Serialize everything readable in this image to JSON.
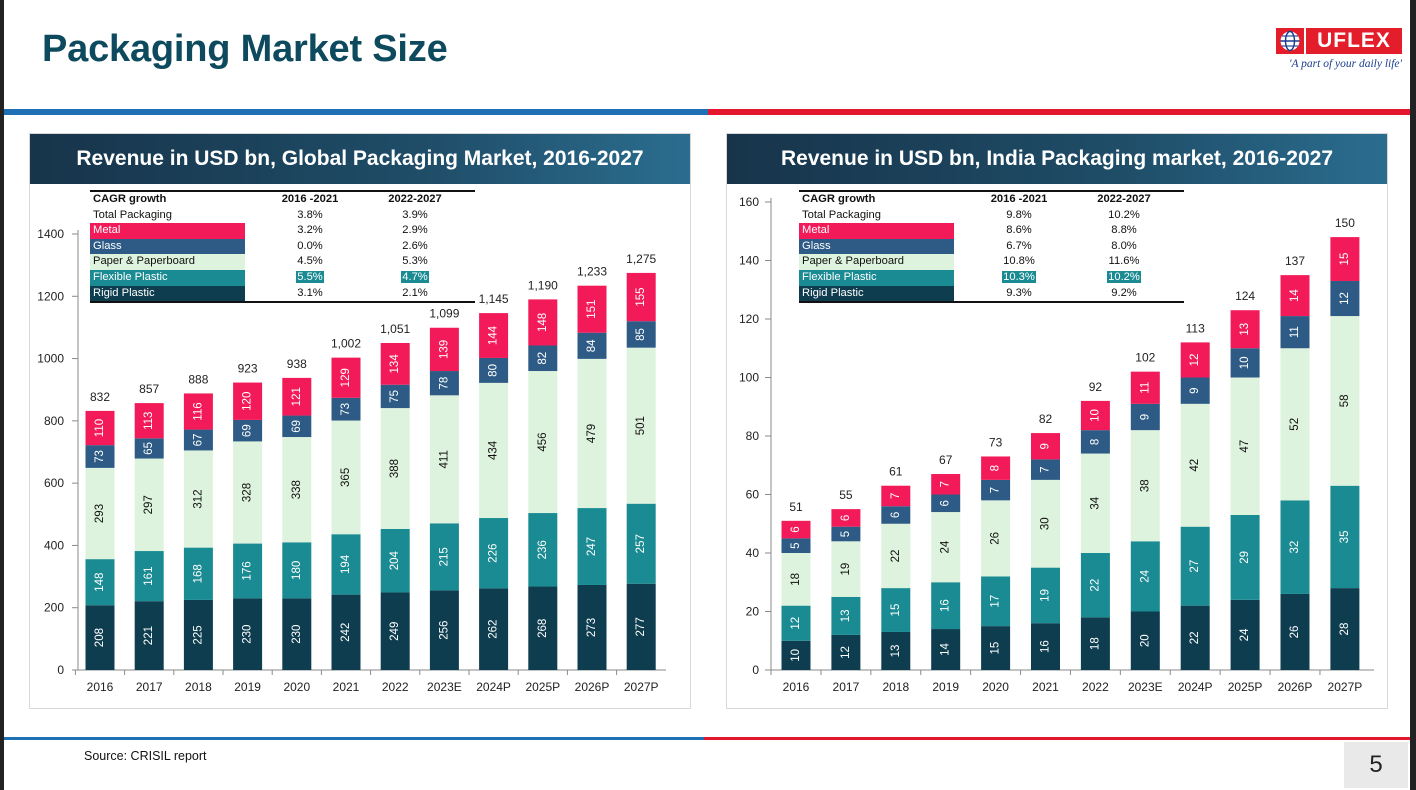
{
  "page": {
    "title": "Packaging Market Size",
    "source": "Source: CRISIL report",
    "page_number": "5"
  },
  "logo": {
    "name": "UFLEX",
    "tagline": "'A part of your daily life'"
  },
  "colors": {
    "title": "#0d4a5e",
    "metal": "#f21a58",
    "glass": "#2d5b86",
    "paper": "#ddf3dd",
    "flexible": "#1a8b93",
    "rigid": "#0e3d4f",
    "rule_blue": "#1f6fb5",
    "rule_red": "#e3162d"
  },
  "cagr_tables": [
    {
      "header": [
        "CAGR growth",
        "2016 -2021",
        "2022-2027"
      ],
      "rows": [
        {
          "label": "Total Packaging",
          "v1": "3.8%",
          "v2": "3.9%",
          "style": "plain"
        },
        {
          "label": "Metal",
          "v1": "3.2%",
          "v2": "2.9%",
          "style": "metal"
        },
        {
          "label": "Glass",
          "v1": "0.0%",
          "v2": "2.6%",
          "style": "glass"
        },
        {
          "label": "Paper & Paperboard",
          "v1": "4.5%",
          "v2": "5.3%",
          "style": "paper"
        },
        {
          "label": "Flexible Plastic",
          "v1": "5.5%",
          "v2": "4.7%",
          "style": "flexible"
        },
        {
          "label": "Rigid Plastic",
          "v1": "3.1%",
          "v2": "2.1%",
          "style": "rigid"
        }
      ]
    },
    {
      "header": [
        "CAGR growth",
        "2016 -2021",
        "2022-2027"
      ],
      "rows": [
        {
          "label": "Total Packaging",
          "v1": "9.8%",
          "v2": "10.2%",
          "style": "plain"
        },
        {
          "label": "Metal",
          "v1": "8.6%",
          "v2": "8.8%",
          "style": "metal"
        },
        {
          "label": "Glass",
          "v1": "6.7%",
          "v2": "8.0%",
          "style": "glass"
        },
        {
          "label": "Paper & Paperboard",
          "v1": "10.8%",
          "v2": "11.6%",
          "style": "paper"
        },
        {
          "label": "Flexible Plastic",
          "v1": "10.3%",
          "v2": "10.2%",
          "style": "flexible"
        },
        {
          "label": "Rigid Plastic",
          "v1": "9.3%",
          "v2": "9.2%",
          "style": "rigid"
        }
      ]
    }
  ],
  "chart_data": [
    {
      "type": "bar",
      "stacked": true,
      "title": "Revenue in USD bn, Global Packaging Market, 2016-2027",
      "categories": [
        "2016",
        "2017",
        "2018",
        "2019",
        "2020",
        "2021",
        "2022",
        "2023E",
        "2024P",
        "2025P",
        "2026P",
        "2027P"
      ],
      "ylim": [
        0,
        1400
      ],
      "yticks": [
        0,
        200,
        400,
        600,
        800,
        1000,
        1200,
        1400
      ],
      "series": [
        {
          "name": "Rigid Plastic",
          "color": "#0e3d4f",
          "label_color": "#ffffff",
          "values": [
            208,
            221,
            225,
            230,
            230,
            242,
            249,
            256,
            262,
            268,
            273,
            277
          ]
        },
        {
          "name": "Flexible Plastic",
          "color": "#1a8b93",
          "label_color": "#ffffff",
          "values": [
            148,
            161,
            168,
            176,
            180,
            194,
            204,
            215,
            226,
            236,
            247,
            257
          ]
        },
        {
          "name": "Paper & Paperboard",
          "color": "#ddf3dd",
          "label_color": "#111111",
          "values": [
            293,
            297,
            312,
            328,
            338,
            365,
            388,
            411,
            434,
            456,
            479,
            501
          ]
        },
        {
          "name": "Glass",
          "color": "#2d5b86",
          "label_color": "#ffffff",
          "values": [
            73,
            65,
            67,
            69,
            69,
            73,
            75,
            78,
            80,
            82,
            84,
            85
          ]
        },
        {
          "name": "Metal",
          "color": "#f21a58",
          "label_color": "#ffffff",
          "values": [
            110,
            113,
            116,
            120,
            121,
            129,
            134,
            139,
            144,
            148,
            151,
            155
          ]
        }
      ],
      "totals": [
        "832",
        "857",
        "888",
        "923",
        "938",
        "1,002",
        "1,051",
        "1,099",
        "1,145",
        "1,190",
        "1,233",
        "1,275"
      ]
    },
    {
      "type": "bar",
      "stacked": true,
      "title": "Revenue in USD bn, India Packaging market, 2016-2027",
      "categories": [
        "2016",
        "2017",
        "2018",
        "2019",
        "2020",
        "2021",
        "2022",
        "2023E",
        "2024P",
        "2025P",
        "2026P",
        "2027P"
      ],
      "ylim": [
        0,
        160
      ],
      "yticks": [
        0,
        20,
        40,
        60,
        80,
        100,
        120,
        140,
        160
      ],
      "series": [
        {
          "name": "Rigid Plastic",
          "color": "#0e3d4f",
          "label_color": "#ffffff",
          "values": [
            10,
            12,
            13,
            14,
            15,
            16,
            18,
            20,
            22,
            24,
            26,
            28
          ]
        },
        {
          "name": "Flexible Plastic",
          "color": "#1a8b93",
          "label_color": "#ffffff",
          "values": [
            12,
            13,
            15,
            16,
            17,
            19,
            22,
            24,
            27,
            29,
            32,
            35
          ]
        },
        {
          "name": "Paper & Paperboard",
          "color": "#ddf3dd",
          "label_color": "#111111",
          "values": [
            18,
            19,
            22,
            24,
            26,
            30,
            34,
            38,
            42,
            47,
            52,
            58
          ]
        },
        {
          "name": "Glass",
          "color": "#2d5b86",
          "label_color": "#ffffff",
          "values": [
            5,
            5,
            6,
            6,
            7,
            7,
            8,
            9,
            9,
            10,
            11,
            12
          ]
        },
        {
          "name": "Metal",
          "color": "#f21a58",
          "label_color": "#ffffff",
          "values": [
            6,
            6,
            7,
            7,
            8,
            9,
            10,
            11,
            12,
            13,
            14,
            15
          ]
        }
      ],
      "totals": [
        "51",
        "55",
        "61",
        "67",
        "73",
        "82",
        "92",
        "102",
        "113",
        "124",
        "137",
        "150"
      ]
    }
  ]
}
